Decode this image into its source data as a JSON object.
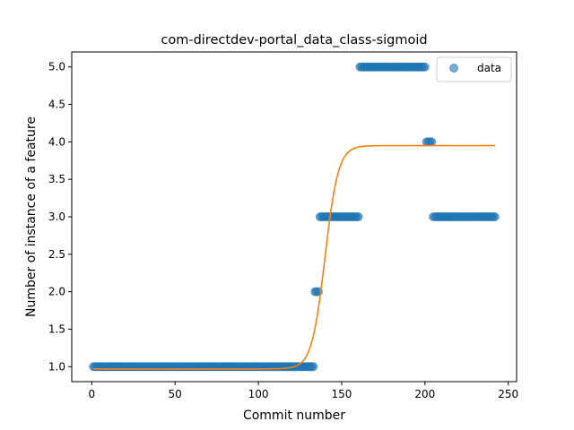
{
  "chart_data": {
    "type": "scatter",
    "title": "com-directdev-portal_data_class-sigmoid",
    "xlabel": "Commit number",
    "ylabel": "Number of instance of a feature",
    "xlim": [
      -12,
      255
    ],
    "ylim": [
      0.8,
      5.2
    ],
    "xticks": [
      0,
      50,
      100,
      150,
      200,
      250
    ],
    "yticks": [
      1.0,
      1.5,
      2.0,
      2.5,
      3.0,
      3.5,
      4.0,
      4.5,
      5.0
    ],
    "xtick_labels": [
      "0",
      "50",
      "100",
      "150",
      "200",
      "250"
    ],
    "ytick_labels": [
      "1.0",
      "1.5",
      "2.0",
      "2.5",
      "3.0",
      "3.5",
      "4.0",
      "4.5",
      "5.0"
    ],
    "grid": false,
    "legend_position": "top-right",
    "series": [
      {
        "name": "data",
        "kind": "scatter",
        "color": "#1f77b4",
        "segments": [
          {
            "x_start": 1,
            "x_end": 133,
            "y": 1.0
          },
          {
            "x_start": 134,
            "x_end": 136,
            "y": 2.0
          },
          {
            "x_start": 137,
            "x_end": 160,
            "y": 3.0
          },
          {
            "x_start": 161,
            "x_end": 200,
            "y": 5.0
          },
          {
            "x_start": 201,
            "x_end": 204,
            "y": 4.0
          },
          {
            "x_start": 205,
            "x_end": 242,
            "y": 3.0
          }
        ]
      },
      {
        "name": "",
        "kind": "line",
        "color": "#ff7f0e",
        "model": "sigmoid",
        "params": {
          "low": 0.97,
          "high": 3.95,
          "midpoint": 140,
          "steepness": 0.25
        },
        "x_range": [
          1,
          242
        ]
      }
    ]
  }
}
